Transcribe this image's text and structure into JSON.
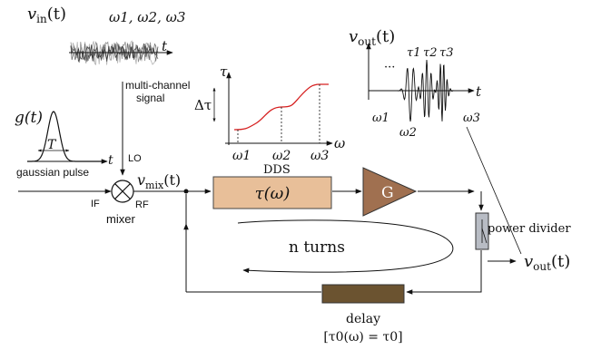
{
  "input": {
    "signal_fn": "v",
    "signal_sub": "in",
    "signal_arg": "(t)",
    "frequencies": "ω1, ω2, ω3",
    "axis_t": "t",
    "caption_line1": "multi-channel",
    "caption_line2": "signal"
  },
  "pulse": {
    "fn": "g(t)",
    "width": "T",
    "axis_t": "t",
    "caption": "gaussian pulse"
  },
  "mixer": {
    "label": "mixer",
    "lo": "LO",
    "if_port": "IF",
    "rf": "RF",
    "vmix_fn": "v",
    "vmix_sub": "mix",
    "vmix_arg": "(t)"
  },
  "dds": {
    "title": "DDS",
    "y_axis": "τ",
    "x_axis": "ω",
    "delta": "Δτ",
    "ticks": [
      "ω1",
      "ω2",
      "ω3"
    ],
    "curve_color": "#d62020"
  },
  "loop": {
    "block_label": "τ(ω)",
    "block_color": "#e8bf99",
    "amp_label": "G",
    "amp_color": "#a07050",
    "turns": "n turns",
    "delay_label": "delay",
    "delay_eq": "[τ0(ω) = τ0]",
    "delay_color": "#6b5330",
    "divider_label": "power divider",
    "divider_color": "#b8bcc4"
  },
  "output": {
    "fn": "v",
    "sub": "out",
    "arg": "(t)",
    "dots": "···",
    "taus": [
      "τ1",
      "τ2",
      "τ3"
    ],
    "axis_t": "t",
    "omegas": [
      "ω1",
      "ω2",
      "ω3"
    ],
    "out_fn": "v",
    "out_sub": "out",
    "out_arg": "(t)"
  }
}
